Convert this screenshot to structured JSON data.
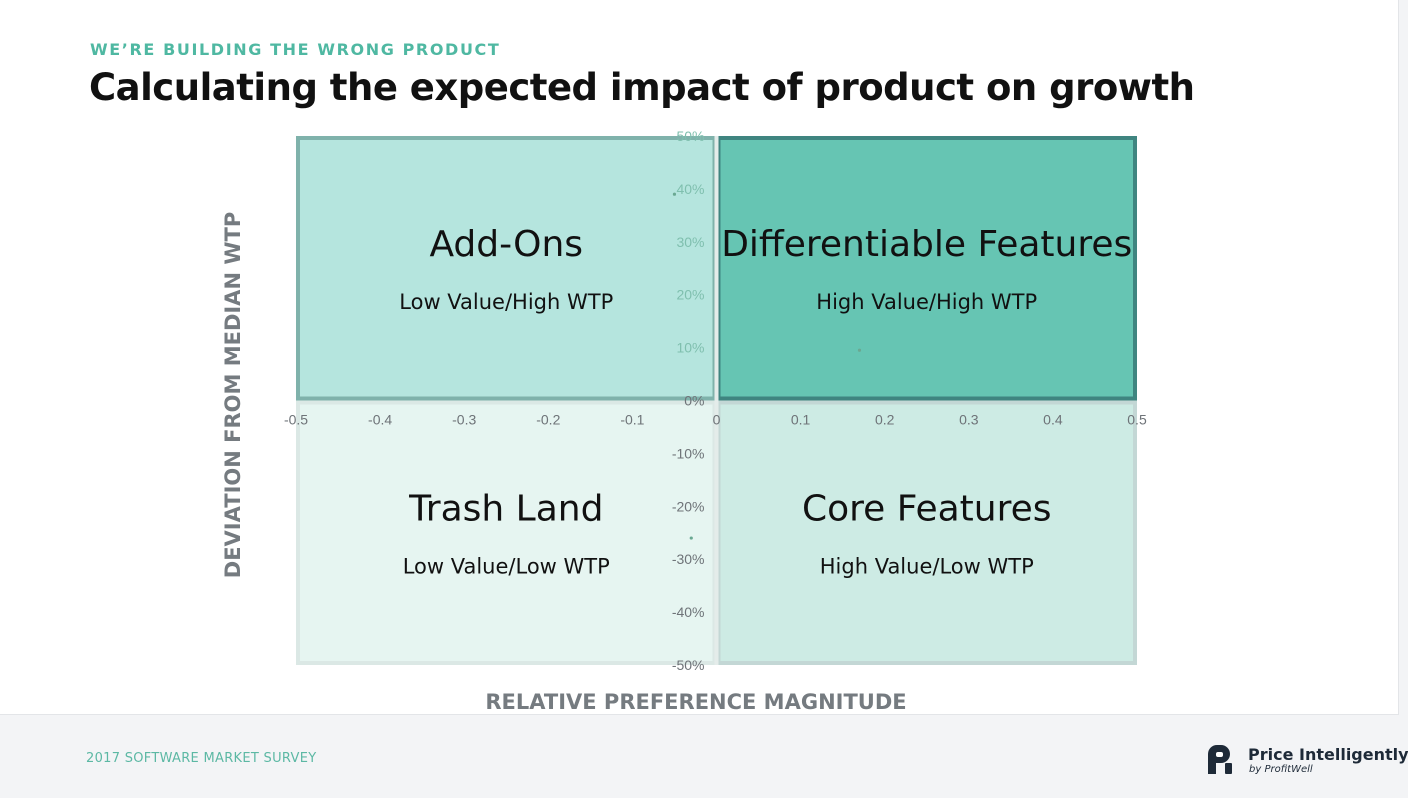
{
  "header": {
    "eyebrow": "WE’RE BUILDING THE WRONG PRODUCT",
    "title": "Calculating the expected impact of product on growth"
  },
  "footer": {
    "survey_label": "2017 SOFTWARE MARKET SURVEY",
    "logo_name": "Price Intelligently",
    "logo_sub": "by ProfitWell"
  },
  "colors": {
    "accent": "#4fb8a2",
    "dark_teal": "#66c5b3",
    "light_teal": "#b5e5de",
    "pale_teal": "#e6f5f1",
    "mint": "#cdebe4",
    "border_dark": "#3f8580",
    "border_light": "#c3d7d5"
  },
  "chart_data": {
    "type": "scatter",
    "xlabel": "RELATIVE PREFERENCE MAGNITUDE",
    "ylabel": "DEVIATION FROM MEDIAN WTP",
    "xlim": [
      -0.5,
      0.5
    ],
    "ylim": [
      -50,
      50
    ],
    "x_ticks": [
      "-0.5",
      "-0.4",
      "-0.3",
      "-0.2",
      "-0.1",
      "0",
      "0.1",
      "0.2",
      "0.3",
      "0.4",
      "0.5"
    ],
    "y_ticks": [
      "50%",
      "40%",
      "30%",
      "20%",
      "10%",
      "0%",
      "-10%",
      "-20%",
      "-30%",
      "-40%",
      "-50%"
    ],
    "quadrants": [
      {
        "title": "Add-Ons",
        "subtitle": "Low Value/High WTP",
        "position": "top-left"
      },
      {
        "title": "Differentiable Features",
        "subtitle": "High Value/High WTP",
        "position": "top-right"
      },
      {
        "title": "Trash Land",
        "subtitle": "Low Value/Low WTP",
        "position": "bottom-left"
      },
      {
        "title": "Core Features",
        "subtitle": "High Value/Low WTP",
        "position": "bottom-right"
      }
    ],
    "points": [
      {
        "x": -0.05,
        "y": 39
      },
      {
        "x": 0.17,
        "y": 9.5
      },
      {
        "x": -0.03,
        "y": -26
      }
    ]
  }
}
